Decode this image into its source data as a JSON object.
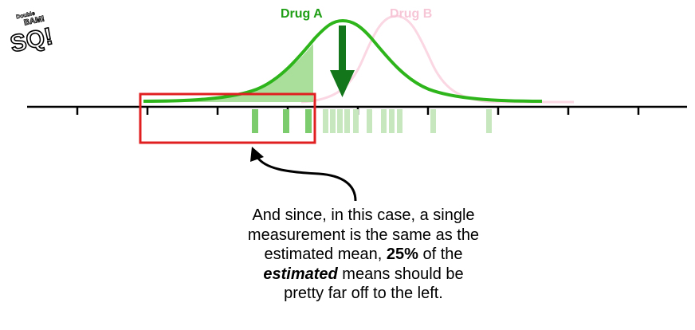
{
  "logo": {
    "top_text": "Double",
    "mid_text": "BAM!",
    "main_text": "SQ!"
  },
  "diagram": {
    "drug_a_label": "Drug A",
    "drug_b_label": "Drug B",
    "drug_a_color": "#1e9e14",
    "drug_b_color": "#f7c6d6",
    "highlight_box_color": "#e02020",
    "arrow_color": "#13761a"
  },
  "caption": {
    "line1": "And since, in this case, a single",
    "line2": "measurement is the same as the",
    "line3_pre": "estimated mean, ",
    "line3_bold": "25%",
    "line3_post": " of the",
    "line4_italic": "estimated",
    "line4_post": " means should be",
    "line5": "pretty far off to the left."
  }
}
